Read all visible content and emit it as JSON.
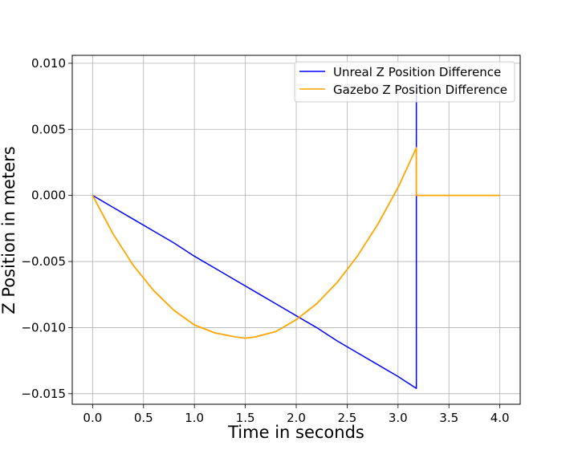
{
  "chart_data": {
    "type": "line",
    "xlabel": "Time in seconds",
    "ylabel": "Z Position in meters",
    "xlim": [
      -0.2,
      4.2
    ],
    "ylim": [
      -0.0158,
      0.0106
    ],
    "xticks": [
      0.0,
      0.5,
      1.0,
      1.5,
      2.0,
      2.5,
      3.0,
      3.5,
      4.0
    ],
    "xtick_labels": [
      "0.0",
      "0.5",
      "1.0",
      "1.5",
      "2.0",
      "2.5",
      "3.0",
      "3.5",
      "4.0"
    ],
    "yticks": [
      -0.015,
      -0.01,
      -0.005,
      0.0,
      0.005,
      0.01
    ],
    "ytick_labels": [
      "−0.015",
      "−0.010",
      "−0.005",
      "0.000",
      "0.005",
      "0.010"
    ],
    "grid": true,
    "legend_position": "top-right",
    "series": [
      {
        "name": "Unreal Z Position Difference",
        "color": "#0000ff",
        "x": [
          0.0,
          0.2,
          0.4,
          0.6,
          0.8,
          1.0,
          1.2,
          1.4,
          1.6,
          1.8,
          2.0,
          2.2,
          2.4,
          2.6,
          2.8,
          3.0,
          3.18,
          3.18,
          3.18
        ],
        "y": [
          0.0,
          -0.0009,
          -0.0018,
          -0.0027,
          -0.0036,
          -0.0046,
          -0.0055,
          -0.0064,
          -0.0073,
          -0.0082,
          -0.0091,
          -0.01,
          -0.011,
          -0.0119,
          -0.0128,
          -0.0137,
          -0.0146,
          0.0,
          0.0084
        ]
      },
      {
        "name": "Gazebo Z Position Difference",
        "color": "#ffa500",
        "x": [
          0.0,
          0.2,
          0.4,
          0.6,
          0.8,
          1.0,
          1.2,
          1.4,
          1.5,
          1.6,
          1.8,
          2.0,
          2.2,
          2.4,
          2.6,
          2.8,
          3.0,
          3.18,
          3.18,
          3.5,
          4.0
        ],
        "y": [
          0.0,
          -0.0029,
          -0.0053,
          -0.0072,
          -0.0087,
          -0.0098,
          -0.0104,
          -0.0107,
          -0.0108,
          -0.0107,
          -0.0103,
          -0.0094,
          -0.0082,
          -0.0066,
          -0.0046,
          -0.0022,
          0.0006,
          0.0036,
          0.0,
          0.0,
          0.0
        ]
      }
    ]
  }
}
